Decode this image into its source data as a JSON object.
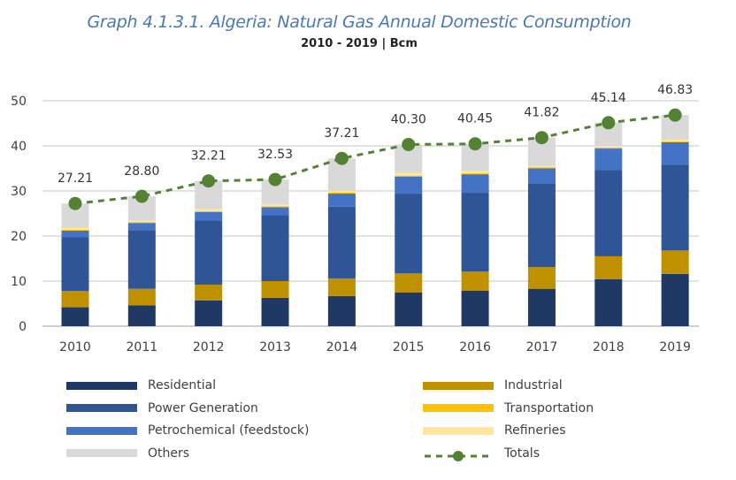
{
  "chart_data": {
    "type": "bar",
    "stacked": true,
    "title": "Graph 4.1.3.1. Algeria: Natural Gas Annual Domestic Consumption",
    "subtitle": "2010 - 2019 | Bcm",
    "xlabel": "",
    "ylabel": "",
    "ylim": [
      0,
      50
    ],
    "yticks": [
      0,
      10,
      20,
      30,
      40,
      50
    ],
    "grid": true,
    "legend_position": "bottom",
    "categories": [
      "2010",
      "2011",
      "2012",
      "2013",
      "2014",
      "2015",
      "2016",
      "2017",
      "2018",
      "2019"
    ],
    "series": [
      {
        "name": "Residential",
        "color": "#1f3864",
        "values": [
          4.2,
          4.6,
          5.7,
          6.3,
          6.7,
          7.5,
          7.9,
          8.3,
          10.4,
          11.6
        ]
      },
      {
        "name": "Industrial",
        "color": "#bf9000",
        "values": [
          3.6,
          3.7,
          3.5,
          3.7,
          3.9,
          4.2,
          4.2,
          4.8,
          5.1,
          5.2
        ]
      },
      {
        "name": "Power Generation",
        "color": "#2f5597",
        "values": [
          11.9,
          13.0,
          14.3,
          14.6,
          15.9,
          17.7,
          17.5,
          18.6,
          19.1,
          19.0
        ]
      },
      {
        "name": "Petrochemical (feedstock)",
        "color": "#4472c4",
        "values": [
          1.5,
          1.6,
          1.8,
          1.8,
          2.9,
          3.8,
          4.1,
          3.3,
          4.8,
          5.0
        ]
      },
      {
        "name": "Transportation",
        "color": "#ffc000",
        "values": [
          0.2,
          0.2,
          0.2,
          0.2,
          0.2,
          0.2,
          0.2,
          0.2,
          0.2,
          0.2
        ]
      },
      {
        "name": "Refineries",
        "color": "#ffe699",
        "values": [
          0.4,
          0.3,
          0.5,
          0.4,
          0.4,
          0.6,
          0.6,
          0.4,
          0.4,
          0.3
        ]
      },
      {
        "name": "Others",
        "color": "#d9d9d9",
        "values": [
          5.41,
          5.4,
          6.21,
          5.53,
          7.21,
          6.3,
          5.95,
          6.22,
          5.14,
          5.53
        ]
      }
    ],
    "totals": {
      "name": "Totals",
      "type": "line",
      "style": "dashed",
      "marker": "circle",
      "color": "#548235",
      "values": [
        27.21,
        28.8,
        32.21,
        32.53,
        37.21,
        40.3,
        40.45,
        41.82,
        45.14,
        46.83
      ],
      "labels": [
        "27.21",
        "28.80",
        "32.21",
        "32.53",
        "37.21",
        "40.30",
        "40.45",
        "41.82",
        "45.14",
        "46.83"
      ]
    },
    "legend": {
      "left": [
        "Residential",
        "Power Generation",
        "Petrochemical (feedstock)",
        "Others"
      ],
      "right": [
        "Industrial",
        "Transportation",
        "Refineries",
        "Totals"
      ]
    }
  }
}
